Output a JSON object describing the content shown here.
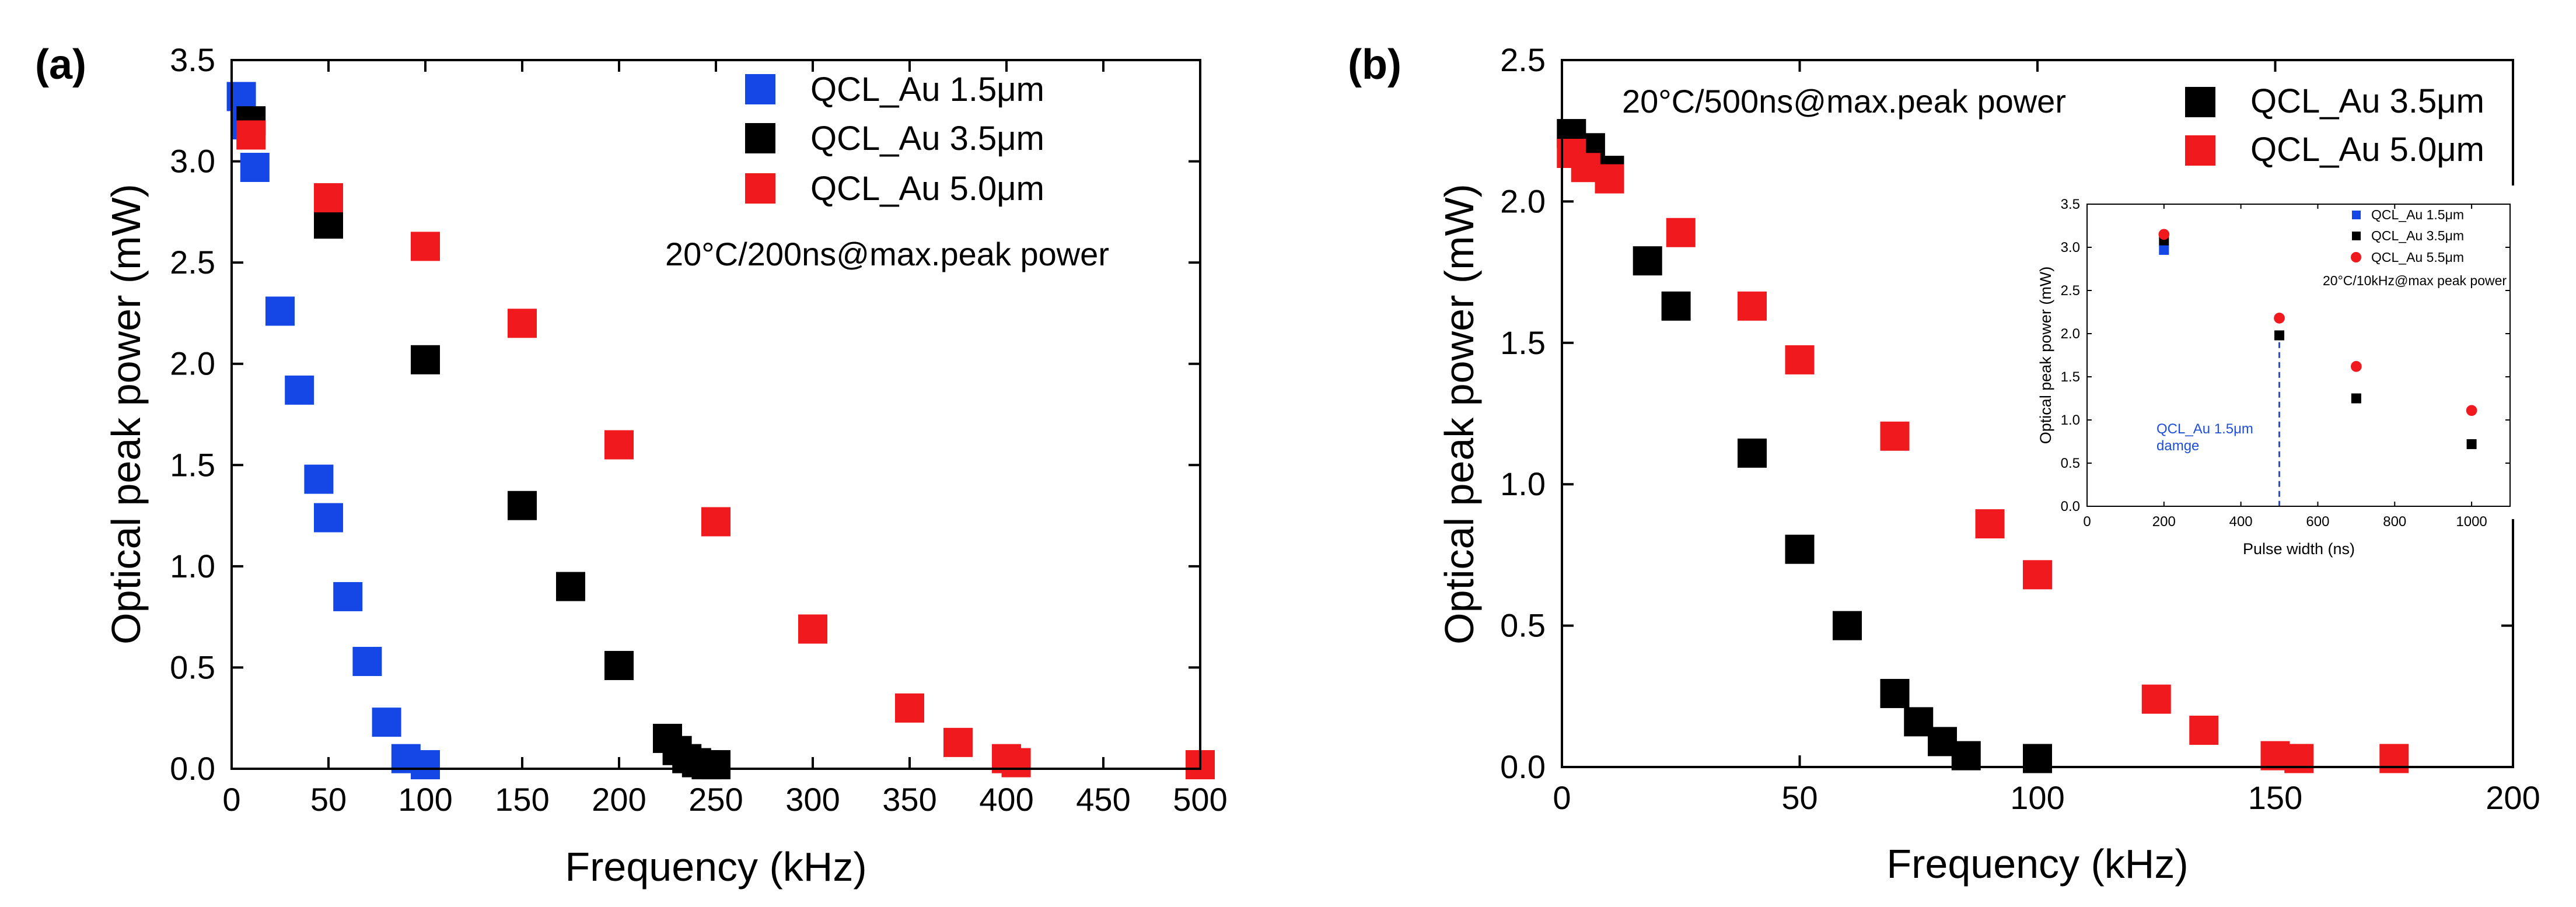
{
  "chart_data": [
    {
      "panel_label": "(a)",
      "type": "scatter",
      "xlabel": "Frequency (kHz)",
      "ylabel": "Optical peak power (mW)",
      "xlim": [
        0,
        500
      ],
      "ylim": [
        0,
        3.5
      ],
      "xticks": [
        "0",
        "50",
        "100",
        "150",
        "200",
        "250",
        "300",
        "350",
        "400",
        "450",
        "500"
      ],
      "yticks": [
        "0.0",
        "0.5",
        "1.0",
        "1.5",
        "2.0",
        "2.5",
        "3.0",
        "3.5"
      ],
      "annotation": "20°C/200ns@max.peak power",
      "series": [
        {
          "name": "QCL_Au 1.5μm",
          "color": "#1447e6",
          "marker": "square",
          "x": [
            5,
            7,
            12,
            25,
            35,
            45,
            50,
            60,
            70,
            80,
            90,
            100
          ],
          "y": [
            3.32,
            3.18,
            2.97,
            2.26,
            1.87,
            1.43,
            1.24,
            0.85,
            0.53,
            0.23,
            0.05,
            0.02
          ]
        },
        {
          "name": "QCL_Au 3.5μm",
          "color": "#000000",
          "marker": "square",
          "x": [
            10,
            50,
            100,
            150,
            175,
            200,
            225,
            230,
            235,
            240,
            245,
            250
          ],
          "y": [
            3.2,
            2.69,
            2.02,
            1.3,
            0.9,
            0.51,
            0.15,
            0.09,
            0.05,
            0.03,
            0.02,
            0.02
          ]
        },
        {
          "name": "QCL_Au 5.0μm",
          "color": "#f0191e",
          "marker": "square",
          "x": [
            10,
            50,
            100,
            150,
            200,
            250,
            300,
            350,
            375,
            400,
            405,
            500
          ],
          "y": [
            3.13,
            2.82,
            2.58,
            2.2,
            1.6,
            1.22,
            0.69,
            0.3,
            0.13,
            0.05,
            0.03,
            0.02
          ]
        }
      ]
    },
    {
      "panel_label": "(b)",
      "type": "scatter",
      "xlabel": "Frequency (kHz)",
      "ylabel": "Optical peak power (mW)",
      "xlim": [
        0,
        200
      ],
      "ylim": [
        0,
        2.5
      ],
      "xticks": [
        "0",
        "50",
        "100",
        "150",
        "200"
      ],
      "yticks": [
        "0.0",
        "0.5",
        "1.0",
        "1.5",
        "2.0",
        "2.5"
      ],
      "annotation": "20°C/500ns@max.peak power",
      "series": [
        {
          "name": "QCL_Au 3.5μm",
          "color": "#000000",
          "marker": "square",
          "x": [
            2,
            6,
            10,
            18,
            24,
            40,
            50,
            60,
            70,
            75,
            80,
            85,
            100
          ],
          "y": [
            2.24,
            2.19,
            2.11,
            1.79,
            1.63,
            1.11,
            0.77,
            0.5,
            0.26,
            0.16,
            0.09,
            0.04,
            0.03
          ]
        },
        {
          "name": "QCL_Au 5.0μm",
          "color": "#f0191e",
          "marker": "square",
          "x": [
            2,
            5,
            10,
            25,
            40,
            50,
            70,
            90,
            100,
            125,
            135,
            150,
            155,
            175
          ],
          "y": [
            2.17,
            2.12,
            2.08,
            1.89,
            1.63,
            1.44,
            1.17,
            0.86,
            0.68,
            0.24,
            0.13,
            0.04,
            0.03,
            0.03
          ]
        }
      ],
      "inset": {
        "type": "scatter",
        "xlabel": "Pulse width (ns)",
        "ylabel": "Optical peak power (mW)",
        "xlim": [
          0,
          1100
        ],
        "ylim": [
          0,
          3.5
        ],
        "xticks": [
          "0",
          "200",
          "400",
          "600",
          "800",
          "1000"
        ],
        "yticks": [
          "0.0",
          "0.5",
          "1.0",
          "1.5",
          "2.0",
          "2.5",
          "3.0",
          "3.5"
        ],
        "annotation": "20°C/10kHz@max peak power",
        "damage_note": [
          "QCL_Au 1.5μm",
          "damge"
        ],
        "damage_x": 500,
        "series": [
          {
            "name": "QCL_Au 1.5μm",
            "color": "#1447e6",
            "marker": "square",
            "x": [
              200
            ],
            "y": [
              2.97
            ]
          },
          {
            "name": "QCL_Au 3.5μm",
            "color": "#000000",
            "marker": "square",
            "x": [
              200,
              500,
              700,
              1000
            ],
            "y": [
              3.08,
              1.98,
              1.25,
              0.72
            ]
          },
          {
            "name": "QCL_Au 5.5μm",
            "color": "#f0191e",
            "marker": "circle",
            "x": [
              200,
              500,
              700,
              1000
            ],
            "y": [
              3.15,
              2.18,
              1.62,
              1.11
            ]
          }
        ]
      }
    }
  ]
}
